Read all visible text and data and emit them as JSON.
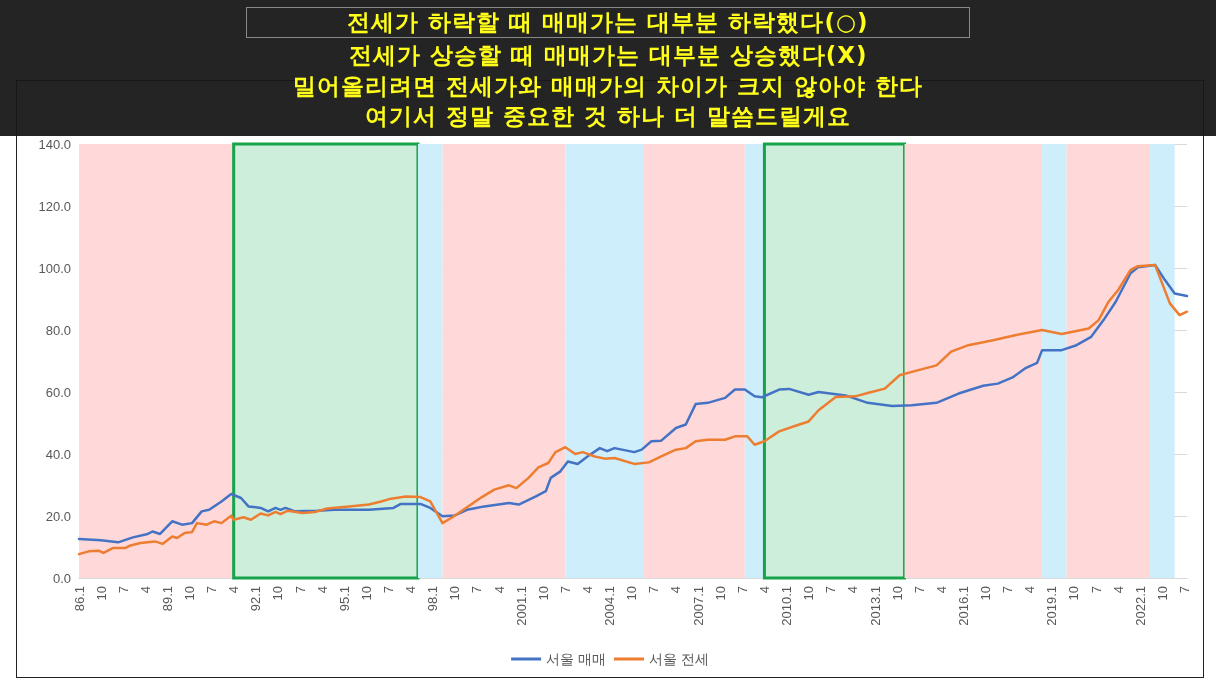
{
  "chart_data": {
    "type": "line",
    "annotations": [
      "전세가 하락할 때 매매가는 대부분 하락했다(○)",
      "전세가 상승할 때 매매가는 대부분 상승했다(X)",
      "밀어올리려면 전세가와 매매가의 차이가 크지 않아야 한다",
      "여기서 정말 중요한 것 하나 더 말씀드릴게요"
    ],
    "series": [
      {
        "name": "서울 매매",
        "color": "#4472c4",
        "x": [
          "1986-01",
          "1986-10",
          "1987-05",
          "1987-11",
          "1988-05",
          "1988-07",
          "1988-10",
          "1989-03",
          "1989-07",
          "1989-11",
          "1990-03",
          "1990-06",
          "1990-11",
          "1991-03",
          "1991-07",
          "1991-10",
          "1992-03",
          "1992-06",
          "1992-09",
          "1992-11",
          "1993-01",
          "1993-05",
          "1994-02",
          "1994-09",
          "1995-11",
          "1996-09",
          "1996-12",
          "1997-07",
          "1997-08",
          "1997-12",
          "1998-05",
          "1998-10",
          "1999-03",
          "1999-10",
          "2000-08",
          "2000-12",
          "2001-07",
          "2001-11",
          "2002-01",
          "2002-05",
          "2002-08",
          "2002-12",
          "2003-04",
          "2003-09",
          "2003-12",
          "2004-03",
          "2004-11",
          "2005-02",
          "2005-06",
          "2005-10",
          "2006-04",
          "2006-08",
          "2006-12",
          "2007-05",
          "2007-12",
          "2008-04",
          "2008-08",
          "2008-12",
          "2009-03",
          "2009-10",
          "2010-02",
          "2010-10",
          "2011-02",
          "2012-01",
          "2012-10",
          "2013-08",
          "2014-04",
          "2015-02",
          "2015-11",
          "2016-09",
          "2017-03",
          "2017-09",
          "2018-02",
          "2018-07",
          "2018-09",
          "2019-05",
          "2019-11",
          "2020-05",
          "2020-10",
          "2021-03",
          "2021-09",
          "2021-12",
          "2022-07",
          "2022-11",
          "2023-03",
          "2023-08"
        ],
        "values": [
          12.6,
          12.2,
          11.5,
          13.1,
          14.2,
          15.0,
          14.2,
          18.3,
          17.2,
          17.7,
          21.5,
          22.0,
          24.7,
          27.1,
          25.8,
          23.1,
          22.6,
          21.5,
          22.6,
          22.0,
          22.6,
          21.5,
          21.7,
          22.0,
          22.0,
          22.6,
          23.9,
          23.9,
          23.9,
          22.6,
          19.9,
          20.2,
          22.0,
          23.1,
          24.2,
          23.7,
          26.3,
          28.0,
          32.3,
          34.4,
          37.6,
          36.8,
          39.2,
          41.9,
          40.9,
          41.9,
          40.6,
          41.4,
          44.1,
          44.3,
          48.4,
          49.5,
          56.1,
          56.5,
          58.1,
          60.8,
          60.8,
          58.6,
          58.3,
          60.8,
          61.0,
          59.1,
          60.0,
          58.9,
          56.5,
          55.5,
          55.7,
          56.5,
          59.5,
          62.0,
          62.7,
          64.7,
          67.6,
          69.4,
          73.5,
          73.5,
          75.1,
          77.8,
          83.2,
          89.1,
          98.3,
          100.2,
          101.0,
          96.1,
          91.8,
          91.0
        ]
      },
      {
        "name": "서울 전세",
        "color": "#ed7d31",
        "x": [
          "1986-01",
          "1986-05",
          "1986-09",
          "1986-11",
          "1987-03",
          "1987-08",
          "1987-10",
          "1988-02",
          "1988-08",
          "1988-11",
          "1989-03",
          "1989-05",
          "1989-08",
          "1989-11",
          "1990-01",
          "1990-05",
          "1990-08",
          "1990-11",
          "1991-03",
          "1991-04",
          "1991-08",
          "1991-11",
          "1992-03",
          "1992-06",
          "1992-09",
          "1992-11",
          "1993-02",
          "1993-08",
          "1994-01",
          "1994-06",
          "1995-03",
          "1995-11",
          "1996-04",
          "1996-08",
          "1997-02",
          "1997-08",
          "1997-12",
          "1998-05",
          "1998-09",
          "1999-03",
          "1999-09",
          "2000-02",
          "2000-08",
          "2000-11",
          "2001-04",
          "2001-08",
          "2001-12",
          "2002-03",
          "2002-07",
          "2002-11",
          "2003-02",
          "2003-07",
          "2003-11",
          "2004-03",
          "2004-11",
          "2005-05",
          "2005-10",
          "2006-04",
          "2006-08",
          "2006-12",
          "2007-05",
          "2007-12",
          "2008-04",
          "2008-09",
          "2008-12",
          "2009-04",
          "2009-10",
          "2010-05",
          "2010-10",
          "2011-02",
          "2011-09",
          "2012-05",
          "2012-10",
          "2013-05",
          "2013-11",
          "2014-04",
          "2015-02",
          "2015-08",
          "2016-03",
          "2017-01",
          "2017-10",
          "2018-09",
          "2019-05",
          "2020-04",
          "2020-08",
          "2020-12",
          "2021-04",
          "2021-09",
          "2021-12",
          "2022-07",
          "2023-01",
          "2023-05",
          "2023-08"
        ],
        "values": [
          7.7,
          8.6,
          8.8,
          8.1,
          9.7,
          9.7,
          10.5,
          11.3,
          11.8,
          11.0,
          13.4,
          12.9,
          14.5,
          14.8,
          17.7,
          17.2,
          18.3,
          17.7,
          20.1,
          18.8,
          19.6,
          18.8,
          20.8,
          20.2,
          21.3,
          20.6,
          21.7,
          21.0,
          21.3,
          22.4,
          23.1,
          23.7,
          24.7,
          25.6,
          26.3,
          26.1,
          24.7,
          17.7,
          19.6,
          22.8,
          26.1,
          28.5,
          29.9,
          29.0,
          32.3,
          35.7,
          37.1,
          40.6,
          42.2,
          40.0,
          40.6,
          39.2,
          38.5,
          38.7,
          36.8,
          37.3,
          39.2,
          41.4,
          41.9,
          44.1,
          44.6,
          44.6,
          45.7,
          45.7,
          43.0,
          44.1,
          47.3,
          49.2,
          50.5,
          54.1,
          58.4,
          58.6,
          59.7,
          61.1,
          65.4,
          66.5,
          68.6,
          73.0,
          75.1,
          76.7,
          78.3,
          80.0,
          78.7,
          80.5,
          83.2,
          89.1,
          92.9,
          99.4,
          100.6,
          101.0,
          88.6,
          84.8,
          85.9
        ]
      }
    ],
    "bands": [
      {
        "axis": "x",
        "from": "1986-01",
        "to": "1991-04",
        "color": "#ffd9d9"
      },
      {
        "axis": "x",
        "from": "1991-04",
        "to": "1997-07",
        "color": "#cdeedb"
      },
      {
        "axis": "x",
        "from": "1997-07",
        "to": "1998-05",
        "color": "#cdeefa"
      },
      {
        "axis": "x",
        "from": "1998-05",
        "to": "2002-07",
        "color": "#ffd9d9"
      },
      {
        "axis": "x",
        "from": "2002-07",
        "to": "2005-03",
        "color": "#cdeefa"
      },
      {
        "axis": "x",
        "from": "2005-03",
        "to": "2008-08",
        "color": "#ffd9d9"
      },
      {
        "axis": "x",
        "from": "2008-08",
        "to": "2009-04",
        "color": "#cdeefa"
      },
      {
        "axis": "x",
        "from": "2009-04",
        "to": "2014-01",
        "color": "#cdeedb"
      },
      {
        "axis": "x",
        "from": "2014-01",
        "to": "2018-09",
        "color": "#ffd9d9"
      },
      {
        "axis": "x",
        "from": "2018-09",
        "to": "2019-07",
        "color": "#cdeefa"
      },
      {
        "axis": "x",
        "from": "2019-07",
        "to": "2022-05",
        "color": "#ffd9d9"
      },
      {
        "axis": "x",
        "from": "2022-05",
        "to": "2023-03",
        "color": "#cdeefa"
      }
    ],
    "xlim": [
      "1986-01",
      "2023-08"
    ],
    "xticks": [
      {
        "value": "1986-01",
        "label": "86.1"
      },
      {
        "value": "1986-10",
        "label": "10"
      },
      {
        "value": "1987-07",
        "label": "7"
      },
      {
        "value": "1988-04",
        "label": "4"
      },
      {
        "value": "1989-01",
        "label": "89.1"
      },
      {
        "value": "1989-10",
        "label": "10"
      },
      {
        "value": "1990-07",
        "label": "7"
      },
      {
        "value": "1991-04",
        "label": "4"
      },
      {
        "value": "1992-01",
        "label": "92.1"
      },
      {
        "value": "1992-10",
        "label": "10"
      },
      {
        "value": "1993-07",
        "label": "7"
      },
      {
        "value": "1994-04",
        "label": "4"
      },
      {
        "value": "1995-01",
        "label": "95.1"
      },
      {
        "value": "1995-10",
        "label": "10"
      },
      {
        "value": "1996-07",
        "label": "7"
      },
      {
        "value": "1997-04",
        "label": "4"
      },
      {
        "value": "1998-01",
        "label": "98.1"
      },
      {
        "value": "1998-10",
        "label": "10"
      },
      {
        "value": "1999-07",
        "label": "7"
      },
      {
        "value": "2000-04",
        "label": "4"
      },
      {
        "value": "2001-01",
        "label": "2001.1"
      },
      {
        "value": "2001-10",
        "label": "10"
      },
      {
        "value": "2002-07",
        "label": "7"
      },
      {
        "value": "2003-04",
        "label": "4"
      },
      {
        "value": "2004-01",
        "label": "2004.1"
      },
      {
        "value": "2004-10",
        "label": "10"
      },
      {
        "value": "2005-07",
        "label": "7"
      },
      {
        "value": "2006-04",
        "label": "4"
      },
      {
        "value": "2007-01",
        "label": "2007.1"
      },
      {
        "value": "2007-10",
        "label": "10"
      },
      {
        "value": "2008-07",
        "label": "7"
      },
      {
        "value": "2009-04",
        "label": "4"
      },
      {
        "value": "2010-01",
        "label": "2010.1"
      },
      {
        "value": "2010-10",
        "label": "10"
      },
      {
        "value": "2011-07",
        "label": "7"
      },
      {
        "value": "2012-04",
        "label": "4"
      },
      {
        "value": "2013-01",
        "label": "2013.1"
      },
      {
        "value": "2013-10",
        "label": "10"
      },
      {
        "value": "2014-07",
        "label": "7"
      },
      {
        "value": "2015-04",
        "label": "4"
      },
      {
        "value": "2016-01",
        "label": "2016.1"
      },
      {
        "value": "2016-10",
        "label": "10"
      },
      {
        "value": "2017-07",
        "label": "7"
      },
      {
        "value": "2018-04",
        "label": "4"
      },
      {
        "value": "2019-01",
        "label": "2019.1"
      },
      {
        "value": "2019-10",
        "label": "10"
      },
      {
        "value": "2020-07",
        "label": "7"
      },
      {
        "value": "2021-04",
        "label": "4"
      },
      {
        "value": "2022-01",
        "label": "2022.1"
      },
      {
        "value": "2022-10",
        "label": "10"
      },
      {
        "value": "2023-07",
        "label": "7"
      }
    ],
    "ylim": [
      0,
      140
    ],
    "yticks": [
      {
        "value": 0,
        "label": "0.0"
      },
      {
        "value": 20,
        "label": "20.0"
      },
      {
        "value": 40,
        "label": "40.0"
      },
      {
        "value": 60,
        "label": "60.0"
      },
      {
        "value": 80,
        "label": "80.0"
      },
      {
        "value": 100,
        "label": "100.0"
      },
      {
        "value": 120,
        "label": "120.0"
      },
      {
        "value": 140,
        "label": "140.0"
      }
    ],
    "grid": "y",
    "legend": "bottom",
    "marker": "none",
    "line_style": "solid"
  }
}
